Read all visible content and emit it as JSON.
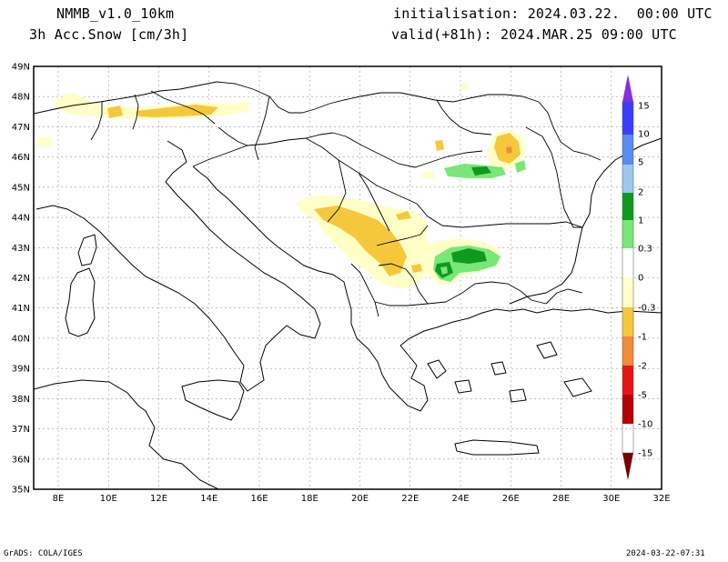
{
  "header": {
    "model": "NMMB_v1.0_10km",
    "field": "3h Acc.Snow [cm/3h]",
    "init": "initialisation: 2024.03.22.  00:00 UTC",
    "valid": "valid(+81h): 2024.MAR.25 09:00 UTC"
  },
  "footer": {
    "credit": "GrADS: COLA/IGES",
    "timestamp": "2024-03-22-07:31"
  },
  "map": {
    "lat_labels": [
      "49N",
      "48N",
      "47N",
      "46N",
      "45N",
      "44N",
      "43N",
      "42N",
      "41N",
      "40N",
      "39N",
      "38N",
      "37N",
      "36N",
      "35N"
    ],
    "lon_labels": [
      "8E",
      "10E",
      "12E",
      "14E",
      "16E",
      "18E",
      "20E",
      "22E",
      "24E",
      "26E",
      "28E",
      "30E",
      "32E"
    ]
  },
  "colorbar": {
    "labels": [
      "15",
      "10",
      "5",
      "2",
      "1",
      "0.3",
      "0",
      "-0.3",
      "-1",
      "-2",
      "-5",
      "-10",
      "-15"
    ],
    "colors": [
      "#8a2be2",
      "#3c3cff",
      "#5a8cf0",
      "#9cc8f0",
      "#0f9a1e",
      "#78e678",
      "#ffffff",
      "#ffffc8",
      "#f5c83c",
      "#f08c3c",
      "#e61414",
      "#b40000",
      "#780000"
    ]
  }
}
